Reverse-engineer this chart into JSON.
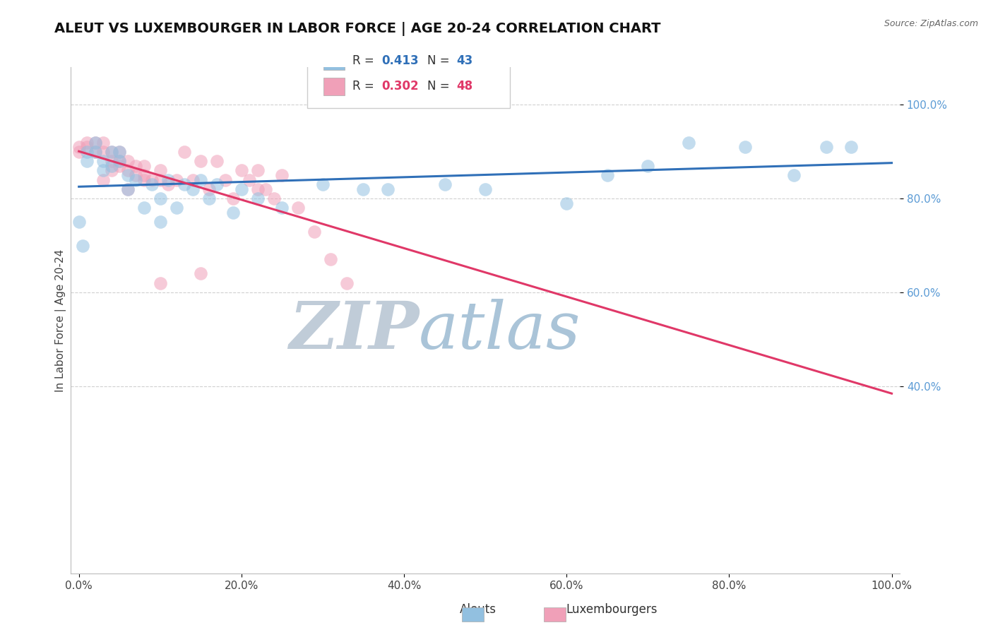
{
  "title": "ALEUT VS LUXEMBOURGER IN LABOR FORCE | AGE 20-24 CORRELATION CHART",
  "source": "Source: ZipAtlas.com",
  "ylabel": "In Labor Force | Age 20-24",
  "legend_r_aleut": "R = 0.413",
  "legend_n_aleut": "N = 43",
  "legend_r_luxem": "R = 0.302",
  "legend_n_luxem": "N = 48",
  "aleut_color": "#92c0e0",
  "aleut_edge_color": "#92c0e0",
  "luxem_color": "#f0a0b8",
  "luxem_edge_color": "#f0a0b8",
  "aleut_line_color": "#3070b8",
  "luxem_line_color": "#e03868",
  "watermark_zip": "ZIP",
  "watermark_atlas": "atlas",
  "watermark_color_zip": "#b8c8d8",
  "watermark_color_atlas": "#a8c0d8",
  "legend_r_color": "#3070b8",
  "legend_n_color": "#3070b8",
  "legend_r2_color": "#e03868",
  "legend_n2_color": "#e03868",
  "ytick_color": "#5b9bd5",
  "aleut_points_x": [
    0.0,
    0.005,
    0.01,
    0.01,
    0.02,
    0.02,
    0.03,
    0.03,
    0.04,
    0.04,
    0.05,
    0.05,
    0.06,
    0.06,
    0.07,
    0.08,
    0.09,
    0.1,
    0.1,
    0.11,
    0.12,
    0.13,
    0.14,
    0.15,
    0.16,
    0.17,
    0.19,
    0.2,
    0.22,
    0.25,
    0.3,
    0.35,
    0.38,
    0.45,
    0.5,
    0.6,
    0.65,
    0.7,
    0.75,
    0.82,
    0.88,
    0.92,
    0.95
  ],
  "aleut_points_y": [
    0.75,
    0.7,
    0.88,
    0.9,
    0.9,
    0.92,
    0.88,
    0.86,
    0.9,
    0.87,
    0.9,
    0.88,
    0.85,
    0.82,
    0.84,
    0.78,
    0.83,
    0.8,
    0.75,
    0.84,
    0.78,
    0.83,
    0.82,
    0.84,
    0.8,
    0.83,
    0.77,
    0.82,
    0.8,
    0.78,
    0.83,
    0.82,
    0.82,
    0.83,
    0.82,
    0.79,
    0.85,
    0.87,
    0.92,
    0.91,
    0.85,
    0.91,
    0.91
  ],
  "luxem_points_x": [
    0.0,
    0.0,
    0.01,
    0.01,
    0.02,
    0.02,
    0.03,
    0.03,
    0.04,
    0.04,
    0.05,
    0.05,
    0.05,
    0.06,
    0.06,
    0.07,
    0.07,
    0.08,
    0.08,
    0.09,
    0.1,
    0.1,
    0.11,
    0.12,
    0.13,
    0.14,
    0.15,
    0.16,
    0.17,
    0.18,
    0.19,
    0.2,
    0.21,
    0.22,
    0.23,
    0.24,
    0.25,
    0.27,
    0.29,
    0.31,
    0.33,
    0.22,
    0.15,
    0.1,
    0.08,
    0.06,
    0.04,
    0.03
  ],
  "luxem_points_y": [
    0.91,
    0.9,
    0.92,
    0.91,
    0.9,
    0.92,
    0.92,
    0.9,
    0.9,
    0.88,
    0.9,
    0.88,
    0.87,
    0.88,
    0.86,
    0.87,
    0.85,
    0.87,
    0.85,
    0.84,
    0.86,
    0.84,
    0.83,
    0.84,
    0.9,
    0.84,
    0.88,
    0.82,
    0.88,
    0.84,
    0.8,
    0.86,
    0.84,
    0.82,
    0.82,
    0.8,
    0.85,
    0.78,
    0.73,
    0.67,
    0.62,
    0.86,
    0.64,
    0.62,
    0.84,
    0.82,
    0.86,
    0.84
  ]
}
